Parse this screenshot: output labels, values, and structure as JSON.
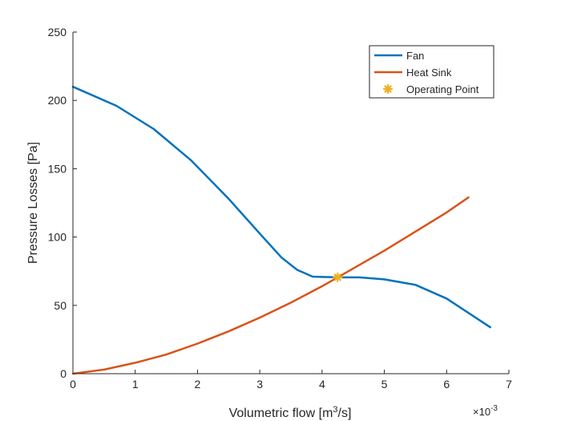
{
  "chart_data": {
    "type": "line",
    "title": "",
    "xlabel": {
      "prefix": "Volumetric flow [m",
      "sup": "3",
      "suffix": "/s]"
    },
    "ylabel": "Pressure Losses [Pa]",
    "x_exponent": {
      "base": "×10",
      "power": "-3"
    },
    "xlim": [
      0,
      7
    ],
    "ylim": [
      0,
      250
    ],
    "x_ticks": [
      0,
      1,
      2,
      3,
      4,
      5,
      6,
      7
    ],
    "x_tick_labels": [
      "0",
      "1",
      "2",
      "3",
      "4",
      "5",
      "6",
      "7"
    ],
    "y_ticks": [
      0,
      50,
      100,
      150,
      200,
      250
    ],
    "y_tick_labels": [
      "0",
      "50",
      "100",
      "150",
      "200",
      "250"
    ],
    "x_units_note": "x values in units of 10^-3 m^3/s",
    "grid": false,
    "legend_position": "top-right",
    "series": [
      {
        "name": "Fan",
        "color": "#0072BD",
        "x": [
          0,
          0.7,
          1.3,
          1.9,
          2.5,
          3.05,
          3.35,
          3.6,
          3.85,
          4.25,
          4.6,
          5.0,
          5.5,
          6.0,
          6.7
        ],
        "y": [
          210,
          196,
          179,
          156,
          128,
          100,
          85,
          76,
          71,
          70.5,
          70.5,
          69,
          65,
          55,
          34
        ]
      },
      {
        "name": "Heat Sink",
        "color": "#D95319",
        "x": [
          0,
          0.5,
          1.0,
          1.5,
          2.0,
          2.5,
          3.0,
          3.5,
          4.0,
          4.25,
          4.5,
          5.0,
          5.5,
          6.0,
          6.35
        ],
        "y": [
          0,
          3,
          8,
          14,
          22,
          31,
          41,
          52,
          64,
          70.5,
          77,
          90,
          104,
          118,
          129
        ]
      }
    ],
    "operating_point": {
      "name": "Operating Point",
      "color": "#EDB120",
      "x": 4.25,
      "y": 70.5
    }
  }
}
